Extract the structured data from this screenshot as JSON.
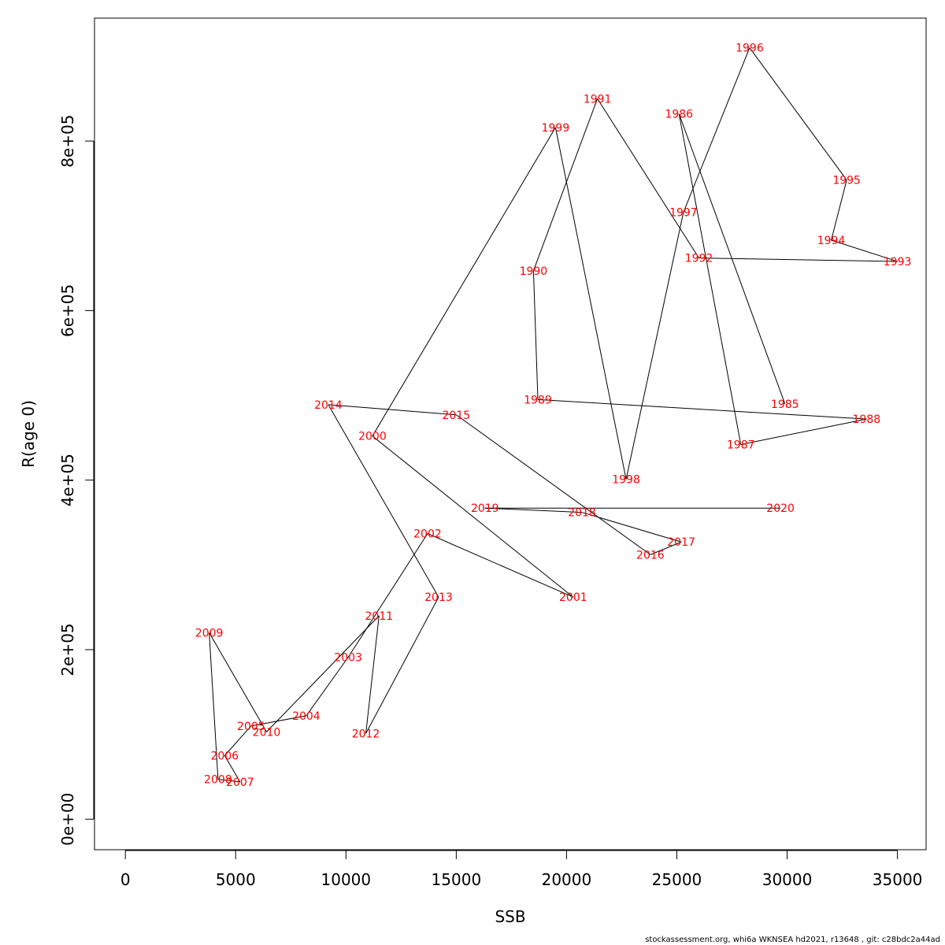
{
  "chart_data": {
    "type": "scatter",
    "xlabel": "SSB",
    "ylabel": "R(age 0)",
    "xlim": [
      -1400,
      36300
    ],
    "ylim": [
      -36000,
      945000
    ],
    "x_ticks": [
      0,
      5000,
      10000,
      15000,
      20000,
      25000,
      30000,
      35000
    ],
    "x_tick_labels": [
      "0",
      "5000",
      "10000",
      "15000",
      "20000",
      "25000",
      "30000",
      "35000"
    ],
    "y_ticks": [
      0,
      200000,
      400000,
      600000,
      800000
    ],
    "y_tick_labels": [
      "0e+00",
      "2e+05",
      "4e+05",
      "6e+05",
      "8e+05"
    ],
    "grid": false,
    "line_color": "#000000",
    "label_color": "#ff0000",
    "points": [
      {
        "year": "1985",
        "x": 29900,
        "y": 490000
      },
      {
        "year": "1986",
        "x": 25100,
        "y": 832000
      },
      {
        "year": "1987",
        "x": 27900,
        "y": 442000
      },
      {
        "year": "1988",
        "x": 33600,
        "y": 472000
      },
      {
        "year": "1989",
        "x": 18700,
        "y": 495000
      },
      {
        "year": "1990",
        "x": 18500,
        "y": 647000
      },
      {
        "year": "1991",
        "x": 21400,
        "y": 850000
      },
      {
        "year": "1992",
        "x": 26000,
        "y": 662000
      },
      {
        "year": "1993",
        "x": 35000,
        "y": 658000
      },
      {
        "year": "1994",
        "x": 32000,
        "y": 683000
      },
      {
        "year": "1995",
        "x": 32700,
        "y": 754000
      },
      {
        "year": "1996",
        "x": 28300,
        "y": 910000
      },
      {
        "year": "1997",
        "x": 25300,
        "y": 716000
      },
      {
        "year": "1998",
        "x": 22700,
        "y": 401000
      },
      {
        "year": "1999",
        "x": 19500,
        "y": 816000
      },
      {
        "year": "2000",
        "x": 11200,
        "y": 452000
      },
      {
        "year": "2001",
        "x": 20300,
        "y": 262000
      },
      {
        "year": "2002",
        "x": 13700,
        "y": 337000
      },
      {
        "year": "2003",
        "x": 10100,
        "y": 191000
      },
      {
        "year": "2004",
        "x": 8200,
        "y": 122000
      },
      {
        "year": "2005",
        "x": 5700,
        "y": 110000
      },
      {
        "year": "2006",
        "x": 4500,
        "y": 75000
      },
      {
        "year": "2007",
        "x": 5200,
        "y": 44000
      },
      {
        "year": "2008",
        "x": 4200,
        "y": 47000
      },
      {
        "year": "2009",
        "x": 3800,
        "y": 220000
      },
      {
        "year": "2010",
        "x": 6400,
        "y": 103000
      },
      {
        "year": "2011",
        "x": 11500,
        "y": 240000
      },
      {
        "year": "2012",
        "x": 10900,
        "y": 101000
      },
      {
        "year": "2013",
        "x": 14200,
        "y": 262000
      },
      {
        "year": "2014",
        "x": 9200,
        "y": 489000
      },
      {
        "year": "2015",
        "x": 15000,
        "y": 477000
      },
      {
        "year": "2016",
        "x": 23800,
        "y": 312000
      },
      {
        "year": "2017",
        "x": 25200,
        "y": 327000
      },
      {
        "year": "2018",
        "x": 20700,
        "y": 362000
      },
      {
        "year": "2019",
        "x": 16300,
        "y": 367000
      },
      {
        "year": "2020",
        "x": 29700,
        "y": 367000
      }
    ]
  },
  "footer": {
    "text": "stockassessment.org, whi6a  WKNSEA  hd2021, r13648 , git: c28bdc2a44ad"
  }
}
